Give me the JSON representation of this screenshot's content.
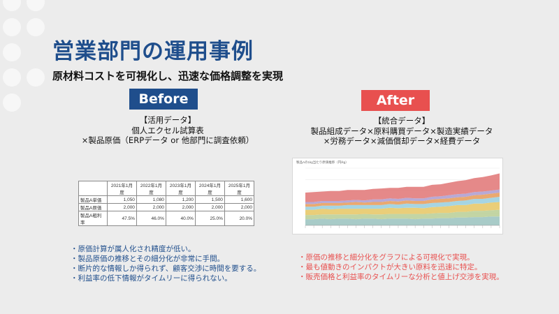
{
  "title": "営業部門の運用事例",
  "subtitle": "原材料コストを可視化し、迅速な価格調整を実現",
  "before": {
    "badge": "Before",
    "sources": [
      "【活用データ】",
      "個人エクセル試算表",
      "×製品原価（ERPデータ or 他部門に調査依頼）"
    ],
    "table": {
      "headers": [
        "",
        "2021年1月度",
        "2022年1月度",
        "2023年1月度",
        "2024年1月度",
        "2025年1月度"
      ],
      "rows": [
        [
          "製品A単価",
          "1,050",
          "1,080",
          "1,200",
          "1,500",
          "1,600"
        ],
        [
          "製品A原価",
          "2,000",
          "2,000",
          "2,000",
          "2,000",
          "2,000"
        ],
        [
          "製品A粗利率",
          "47.5%",
          "46.0%",
          "40.0%",
          "25.0%",
          "20.0%"
        ]
      ]
    },
    "notes": [
      "・原価計算が属人化され精度が低い。",
      "・製品原価の推移とその細分化が非常に手間。",
      "・断片的な情報しか得られず、顧客交渉に時間を要する。",
      "・利益率の低下情報がタイムリーに得られない。"
    ]
  },
  "after": {
    "badge": "After",
    "sources": [
      "【統合データ】",
      "製品組成データ×原料購買データ×製造実績データ",
      "×労務データ×減価償却データ×経費データ"
    ],
    "chart_title": "製品Aの1kg当たり原価推移（円/kg）",
    "notes": [
      "・原価の推移と細分化をグラフによる可視化で実現。",
      "・最も値動きのインパクトが大きい原料を迅速に特定。",
      "・販売価格と利益率のタイムリーな分析と値上げ交渉を実現。"
    ]
  },
  "colors": {
    "title": "#1f4e8c",
    "before_accent": "#1f4e8c",
    "after_accent": "#e8504f",
    "stack_layers": [
      "#9ec5c2",
      "#bcd09a",
      "#e8c96a",
      "#9cd0e0",
      "#e8a060",
      "#b0a0d0",
      "#e27c7c",
      "#7ca6d8"
    ]
  },
  "chart_data": {
    "type": "area",
    "stacked": true,
    "title": "",
    "xlabel": "",
    "ylabel": "",
    "series": [
      {
        "values": [
          12,
          12,
          13,
          12,
          13,
          13,
          12,
          13,
          13,
          12,
          13,
          13,
          13,
          12,
          13,
          13,
          14,
          14,
          15,
          15,
          16,
          16,
          17,
          17
        ]
      },
      {
        "values": [
          8,
          8,
          8,
          9,
          8,
          8,
          9,
          9,
          8,
          9,
          9,
          9,
          9,
          10,
          9,
          10,
          10,
          10,
          11,
          11,
          12,
          12,
          12,
          13
        ]
      },
      {
        "values": [
          10,
          10,
          11,
          10,
          11,
          11,
          11,
          10,
          11,
          11,
          12,
          11,
          12,
          12,
          11,
          12,
          12,
          13,
          13,
          13,
          14,
          14,
          15,
          15
        ]
      },
      {
        "values": [
          6,
          6,
          6,
          7,
          6,
          7,
          7,
          7,
          7,
          7,
          7,
          7,
          8,
          7,
          8,
          8,
          8,
          8,
          8,
          9,
          9,
          9,
          9,
          10
        ]
      },
      {
        "values": [
          5,
          5,
          5,
          5,
          5,
          5,
          6,
          5,
          6,
          6,
          6,
          6,
          6,
          6,
          6,
          7,
          7,
          7,
          7,
          7,
          7,
          8,
          8,
          8
        ]
      },
      {
        "values": [
          4,
          4,
          4,
          4,
          4,
          4,
          4,
          4,
          5,
          5,
          5,
          5,
          5,
          5,
          5,
          5,
          5,
          6,
          6,
          6,
          6,
          6,
          6,
          6
        ]
      },
      {
        "values": [
          18,
          19,
          18,
          19,
          19,
          20,
          19,
          20,
          20,
          21,
          20,
          21,
          21,
          22,
          22,
          23,
          23,
          24,
          25,
          26,
          27,
          28,
          29,
          31
        ]
      }
    ]
  }
}
